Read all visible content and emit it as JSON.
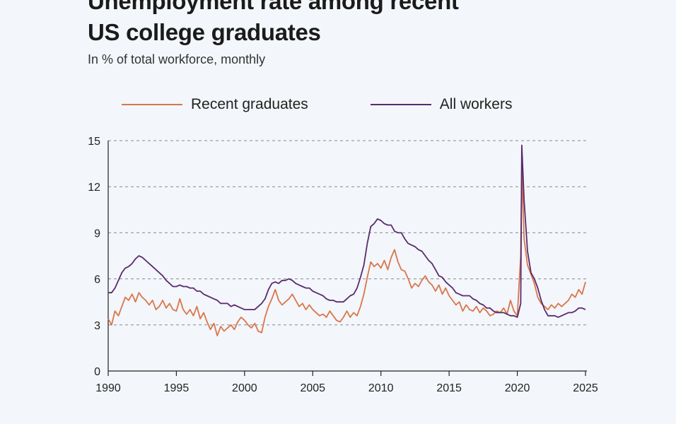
{
  "title_line1": "Unemployment rate among recent",
  "title_line2": "US college graduates",
  "subtitle": "In % of total workforce, monthly",
  "chart_data": {
    "type": "line",
    "title": "Unemployment rate among recent US college graduates",
    "subtitle": "In % of total workforce, monthly",
    "xlabel": "",
    "ylabel": "",
    "xlim": [
      1990,
      2025
    ],
    "ylim": [
      0,
      15
    ],
    "x_ticks": [
      1990,
      1995,
      2000,
      2005,
      2010,
      2015,
      2020,
      2025
    ],
    "y_ticks": [
      0,
      3,
      6,
      9,
      12,
      15
    ],
    "grid": "horizontal dashed",
    "legend": "top",
    "series": [
      {
        "name": "Recent graduates",
        "color": "#d9764a",
        "x": [
          1990.0,
          1990.25,
          1990.5,
          1990.75,
          1991.0,
          1991.25,
          1991.5,
          1991.75,
          1992.0,
          1992.25,
          1992.5,
          1992.75,
          1993.0,
          1993.25,
          1993.5,
          1993.75,
          1994.0,
          1994.25,
          1994.5,
          1994.75,
          1995.0,
          1995.25,
          1995.5,
          1995.75,
          1996.0,
          1996.25,
          1996.5,
          1996.75,
          1997.0,
          1997.25,
          1997.5,
          1997.75,
          1998.0,
          1998.25,
          1998.5,
          1998.75,
          1999.0,
          1999.25,
          1999.5,
          1999.75,
          2000.0,
          2000.25,
          2000.5,
          2000.75,
          2001.0,
          2001.25,
          2001.5,
          2001.75,
          2002.0,
          2002.25,
          2002.5,
          2002.75,
          2003.0,
          2003.25,
          2003.5,
          2003.75,
          2004.0,
          2004.25,
          2004.5,
          2004.75,
          2005.0,
          2005.25,
          2005.5,
          2005.75,
          2006.0,
          2006.25,
          2006.5,
          2006.75,
          2007.0,
          2007.25,
          2007.5,
          2007.75,
          2008.0,
          2008.25,
          2008.5,
          2008.75,
          2009.0,
          2009.25,
          2009.5,
          2009.75,
          2010.0,
          2010.25,
          2010.5,
          2010.75,
          2011.0,
          2011.25,
          2011.5,
          2011.75,
          2012.0,
          2012.25,
          2012.5,
          2012.75,
          2013.0,
          2013.25,
          2013.5,
          2013.75,
          2014.0,
          2014.25,
          2014.5,
          2014.75,
          2015.0,
          2015.25,
          2015.5,
          2015.75,
          2016.0,
          2016.25,
          2016.5,
          2016.75,
          2017.0,
          2017.25,
          2017.5,
          2017.75,
          2018.0,
          2018.25,
          2018.5,
          2018.75,
          2019.0,
          2019.25,
          2019.5,
          2019.75,
          2020.0,
          2020.25,
          2020.33,
          2020.5,
          2020.75,
          2021.0,
          2021.25,
          2021.5,
          2021.75,
          2022.0,
          2022.25,
          2022.5,
          2022.75,
          2023.0,
          2023.25,
          2023.5,
          2023.75,
          2024.0,
          2024.25,
          2024.5,
          2024.75,
          2025.0
        ],
        "values": [
          3.4,
          3.0,
          3.9,
          3.6,
          4.2,
          4.8,
          4.6,
          5.0,
          4.5,
          5.1,
          4.8,
          4.6,
          4.3,
          4.6,
          4.0,
          4.2,
          4.6,
          4.1,
          4.4,
          4.0,
          3.9,
          4.7,
          4.0,
          3.7,
          4.0,
          3.6,
          4.2,
          3.4,
          3.8,
          3.2,
          2.7,
          3.1,
          2.3,
          2.9,
          2.6,
          2.8,
          3.0,
          2.7,
          3.2,
          3.5,
          3.3,
          3.0,
          2.8,
          3.1,
          2.6,
          2.5,
          3.5,
          4.2,
          4.7,
          5.3,
          4.6,
          4.3,
          4.5,
          4.7,
          5.0,
          4.6,
          4.2,
          4.4,
          4.0,
          4.3,
          4.0,
          3.8,
          3.6,
          3.7,
          3.5,
          3.9,
          3.6,
          3.3,
          3.2,
          3.5,
          3.9,
          3.5,
          3.8,
          3.6,
          4.2,
          5.0,
          6.1,
          7.1,
          6.8,
          7.0,
          6.7,
          7.2,
          6.6,
          7.4,
          7.9,
          7.1,
          6.6,
          6.5,
          6.0,
          5.4,
          5.7,
          5.5,
          5.9,
          6.2,
          5.8,
          5.6,
          5.2,
          5.6,
          5.0,
          5.4,
          4.9,
          4.6,
          4.3,
          4.5,
          3.9,
          4.3,
          4.0,
          3.9,
          4.2,
          3.8,
          4.1,
          3.9,
          3.6,
          3.7,
          3.9,
          3.8,
          4.1,
          3.7,
          4.6,
          3.9,
          3.6,
          7.5,
          13.3,
          8.6,
          6.9,
          6.3,
          5.7,
          4.8,
          4.4,
          4.2,
          4.0,
          4.3,
          4.1,
          4.4,
          4.2,
          4.4,
          4.6,
          5.0,
          4.8,
          5.3,
          5.0,
          5.8
        ]
      },
      {
        "name": "All workers",
        "color": "#5a2a6e",
        "x": [
          1990.0,
          1990.25,
          1990.5,
          1990.75,
          1991.0,
          1991.25,
          1991.5,
          1991.75,
          1992.0,
          1992.25,
          1992.5,
          1992.75,
          1993.0,
          1993.25,
          1993.5,
          1993.75,
          1994.0,
          1994.25,
          1994.5,
          1994.75,
          1995.0,
          1995.25,
          1995.5,
          1995.75,
          1996.0,
          1996.25,
          1996.5,
          1996.75,
          1997.0,
          1997.25,
          1997.5,
          1997.75,
          1998.0,
          1998.25,
          1998.5,
          1998.75,
          1999.0,
          1999.25,
          1999.5,
          1999.75,
          2000.0,
          2000.25,
          2000.5,
          2000.75,
          2001.0,
          2001.25,
          2001.5,
          2001.75,
          2002.0,
          2002.25,
          2002.5,
          2002.75,
          2003.0,
          2003.25,
          2003.5,
          2003.75,
          2004.0,
          2004.25,
          2004.5,
          2004.75,
          2005.0,
          2005.25,
          2005.5,
          2005.75,
          2006.0,
          2006.25,
          2006.5,
          2006.75,
          2007.0,
          2007.25,
          2007.5,
          2007.75,
          2008.0,
          2008.25,
          2008.5,
          2008.75,
          2009.0,
          2009.25,
          2009.5,
          2009.75,
          2010.0,
          2010.25,
          2010.5,
          2010.75,
          2011.0,
          2011.25,
          2011.5,
          2011.75,
          2012.0,
          2012.25,
          2012.5,
          2012.75,
          2013.0,
          2013.25,
          2013.5,
          2013.75,
          2014.0,
          2014.25,
          2014.5,
          2014.75,
          2015.0,
          2015.25,
          2015.5,
          2015.75,
          2016.0,
          2016.25,
          2016.5,
          2016.75,
          2017.0,
          2017.25,
          2017.5,
          2017.75,
          2018.0,
          2018.25,
          2018.5,
          2018.75,
          2019.0,
          2019.25,
          2019.5,
          2019.75,
          2020.0,
          2020.25,
          2020.33,
          2020.5,
          2020.75,
          2021.0,
          2021.25,
          2021.5,
          2021.75,
          2022.0,
          2022.25,
          2022.5,
          2022.75,
          2023.0,
          2023.25,
          2023.5,
          2023.75,
          2024.0,
          2024.25,
          2024.5,
          2024.75,
          2025.0
        ],
        "values": [
          5.1,
          5.1,
          5.4,
          5.9,
          6.4,
          6.7,
          6.8,
          7.0,
          7.3,
          7.5,
          7.4,
          7.2,
          7.0,
          6.8,
          6.6,
          6.4,
          6.2,
          5.9,
          5.7,
          5.5,
          5.5,
          5.6,
          5.5,
          5.5,
          5.4,
          5.4,
          5.2,
          5.2,
          5.0,
          4.9,
          4.8,
          4.7,
          4.6,
          4.4,
          4.4,
          4.4,
          4.2,
          4.3,
          4.2,
          4.1,
          4.0,
          4.0,
          4.0,
          4.0,
          4.2,
          4.4,
          4.7,
          5.3,
          5.7,
          5.8,
          5.7,
          5.9,
          5.9,
          6.0,
          5.9,
          5.7,
          5.6,
          5.5,
          5.4,
          5.4,
          5.2,
          5.1,
          5.0,
          4.9,
          4.7,
          4.6,
          4.6,
          4.5,
          4.5,
          4.5,
          4.7,
          4.9,
          5.0,
          5.4,
          6.1,
          6.9,
          8.3,
          9.4,
          9.6,
          9.9,
          9.8,
          9.6,
          9.5,
          9.5,
          9.1,
          9.0,
          9.0,
          8.6,
          8.3,
          8.2,
          8.1,
          7.9,
          7.8,
          7.5,
          7.2,
          7.0,
          6.6,
          6.2,
          6.1,
          5.8,
          5.6,
          5.4,
          5.1,
          5.0,
          4.9,
          4.9,
          4.9,
          4.7,
          4.6,
          4.4,
          4.3,
          4.1,
          4.1,
          3.9,
          3.8,
          3.8,
          3.8,
          3.7,
          3.6,
          3.6,
          3.5,
          4.4,
          14.7,
          11.1,
          7.8,
          6.4,
          6.0,
          5.4,
          4.6,
          4.0,
          3.6,
          3.6,
          3.6,
          3.5,
          3.6,
          3.7,
          3.8,
          3.8,
          3.9,
          4.1,
          4.1,
          4.0
        ]
      }
    ]
  }
}
